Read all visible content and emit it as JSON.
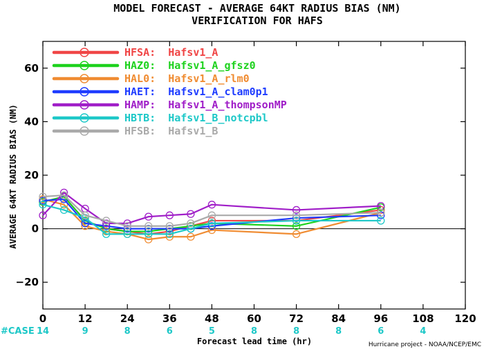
{
  "chart_data": {
    "type": "line",
    "title": [
      "MODEL FORECAST - AVERAGE 64KT RADIUS BIAS (NM)",
      "VERIFICATION FOR HAFS"
    ],
    "xlabel": "Forecast lead time (hr)",
    "ylabel": "AVERAGE 64KT RADIUS BIAS (NM)",
    "xlim": [
      0,
      120
    ],
    "ylim": [
      -30,
      70
    ],
    "xticks": [
      0,
      12,
      24,
      36,
      48,
      60,
      72,
      84,
      96,
      108,
      120
    ],
    "yticks": [
      -20,
      0,
      20,
      40,
      60
    ],
    "zero_line": true,
    "legend_position": "top-left",
    "x": [
      0,
      6,
      12,
      18,
      24,
      30,
      36,
      42,
      48,
      72,
      96
    ],
    "series": [
      {
        "name": "HFSA:  Hafsv1_A",
        "color": "#f04646",
        "values": [
          10,
          12,
          3,
          0,
          -1,
          -2,
          -1,
          1,
          3,
          3,
          7
        ]
      },
      {
        "name": "HAZ0:  Hafsv1_A_gfsz0",
        "color": "#1ed21e",
        "values": [
          10,
          12,
          3,
          0,
          -1,
          -1,
          0,
          1,
          2,
          1,
          8
        ]
      },
      {
        "name": "HAL0:  Hafsv1_A_rlm0",
        "color": "#f08c32",
        "values": [
          11,
          9,
          1,
          -1,
          -2,
          -4,
          -3,
          -3,
          -0.5,
          -2,
          6
        ]
      },
      {
        "name": "HAET:  Hafsv1_A_clam0p1",
        "color": "#1e3cff",
        "values": [
          10.5,
          11,
          2,
          1,
          0,
          0,
          0,
          0,
          1,
          4,
          5
        ]
      },
      {
        "name": "HAMP:  Hafsv1_A_thompsonMP",
        "color": "#a01ec8",
        "values": [
          5,
          13.5,
          7.5,
          2,
          2,
          4.5,
          5,
          5.5,
          9,
          7,
          8.5
        ]
      },
      {
        "name": "HBTB:  Hafsv1_B_notcpbl",
        "color": "#1ec8c8",
        "values": [
          9,
          7,
          4,
          -2,
          -2,
          -2,
          -2,
          0,
          2,
          3,
          3
        ]
      },
      {
        "name": "HFSB:  Hafsv1_B",
        "color": "#aaaaaa",
        "values": [
          12,
          12.5,
          5,
          3,
          1,
          1,
          1,
          2,
          5,
          5,
          6
        ]
      }
    ],
    "cases": {
      "label": "#CASE",
      "color": "#1ec8c8",
      "points": [
        {
          "x": 0,
          "n": "14"
        },
        {
          "x": 12,
          "n": "9"
        },
        {
          "x": 24,
          "n": "8"
        },
        {
          "x": 36,
          "n": "6"
        },
        {
          "x": 48,
          "n": "5"
        },
        {
          "x": 60,
          "n": "8"
        },
        {
          "x": 72,
          "n": "8"
        },
        {
          "x": 84,
          "n": "8"
        },
        {
          "x": 96,
          "n": "6"
        },
        {
          "x": 108,
          "n": "4"
        }
      ]
    },
    "credit": "Hurricane project - NOAA/NCEP/EMC"
  }
}
